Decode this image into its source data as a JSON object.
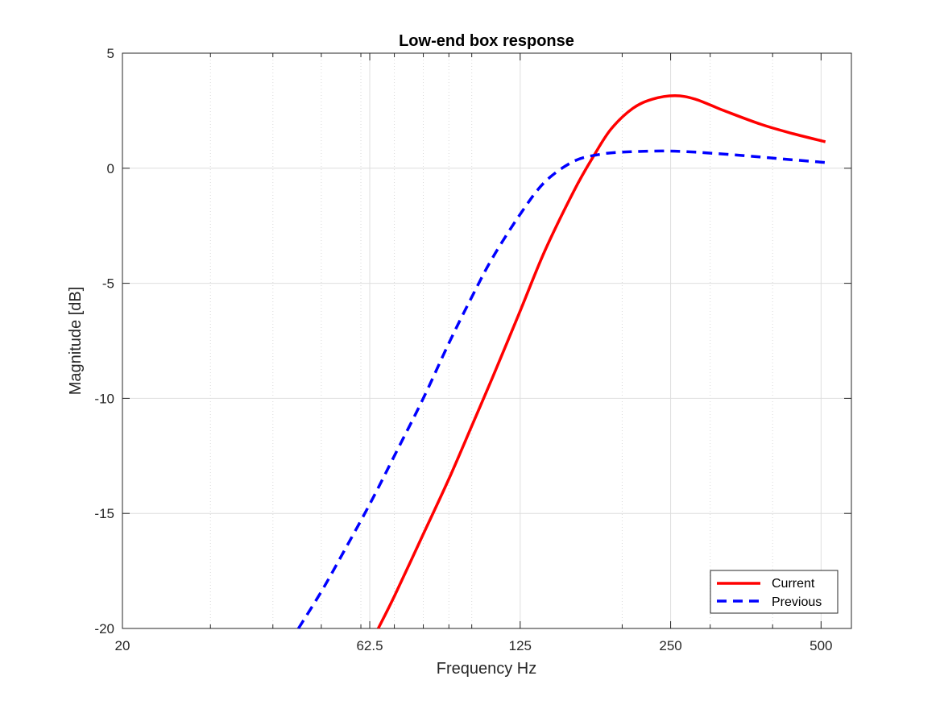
{
  "chart_data": {
    "type": "line",
    "title": "Low-end box response",
    "xlabel": "Frequency Hz",
    "ylabel": "Magnitude [dB]",
    "xscale": "log",
    "xlim": [
      20,
      575
    ],
    "ylim": [
      -20,
      5
    ],
    "xticks": [
      20,
      62.5,
      125,
      250,
      500
    ],
    "xtick_labels": [
      "20",
      "62.5",
      "125",
      "250",
      "500"
    ],
    "yticks": [
      -20,
      -15,
      -10,
      -5,
      0,
      5
    ],
    "ytick_labels": [
      "-20",
      "-15",
      "-10",
      "-5",
      "0",
      "5"
    ],
    "grid": true,
    "legend": {
      "position": "bottom-right",
      "entries": [
        "Current",
        "Previous"
      ]
    },
    "series": [
      {
        "name": "Current",
        "color": "#ff0000",
        "linestyle": "solid",
        "points": [
          [
            65,
            -20.0
          ],
          [
            70,
            -18.6
          ],
          [
            80,
            -15.9
          ],
          [
            90,
            -13.5
          ],
          [
            100,
            -11.2
          ],
          [
            110,
            -9.1
          ],
          [
            125,
            -6.2
          ],
          [
            140,
            -3.6
          ],
          [
            160,
            -1.0
          ],
          [
            175,
            0.5
          ],
          [
            190,
            1.7
          ],
          [
            210,
            2.6
          ],
          [
            230,
            3.0
          ],
          [
            255,
            3.15
          ],
          [
            280,
            3.0
          ],
          [
            320,
            2.5
          ],
          [
            380,
            1.9
          ],
          [
            440,
            1.5
          ],
          [
            510,
            1.15
          ]
        ]
      },
      {
        "name": "Previous",
        "color": "#0000ff",
        "linestyle": "dashed",
        "points": [
          [
            45,
            -20.0
          ],
          [
            50,
            -18.4
          ],
          [
            55,
            -16.8
          ],
          [
            62.5,
            -14.6
          ],
          [
            70,
            -12.5
          ],
          [
            80,
            -10.0
          ],
          [
            90,
            -7.6
          ],
          [
            100,
            -5.6
          ],
          [
            110,
            -3.9
          ],
          [
            125,
            -2.0
          ],
          [
            140,
            -0.6
          ],
          [
            160,
            0.3
          ],
          [
            180,
            0.6
          ],
          [
            200,
            0.7
          ],
          [
            240,
            0.75
          ],
          [
            280,
            0.7
          ],
          [
            350,
            0.55
          ],
          [
            420,
            0.4
          ],
          [
            510,
            0.25
          ]
        ]
      }
    ]
  }
}
